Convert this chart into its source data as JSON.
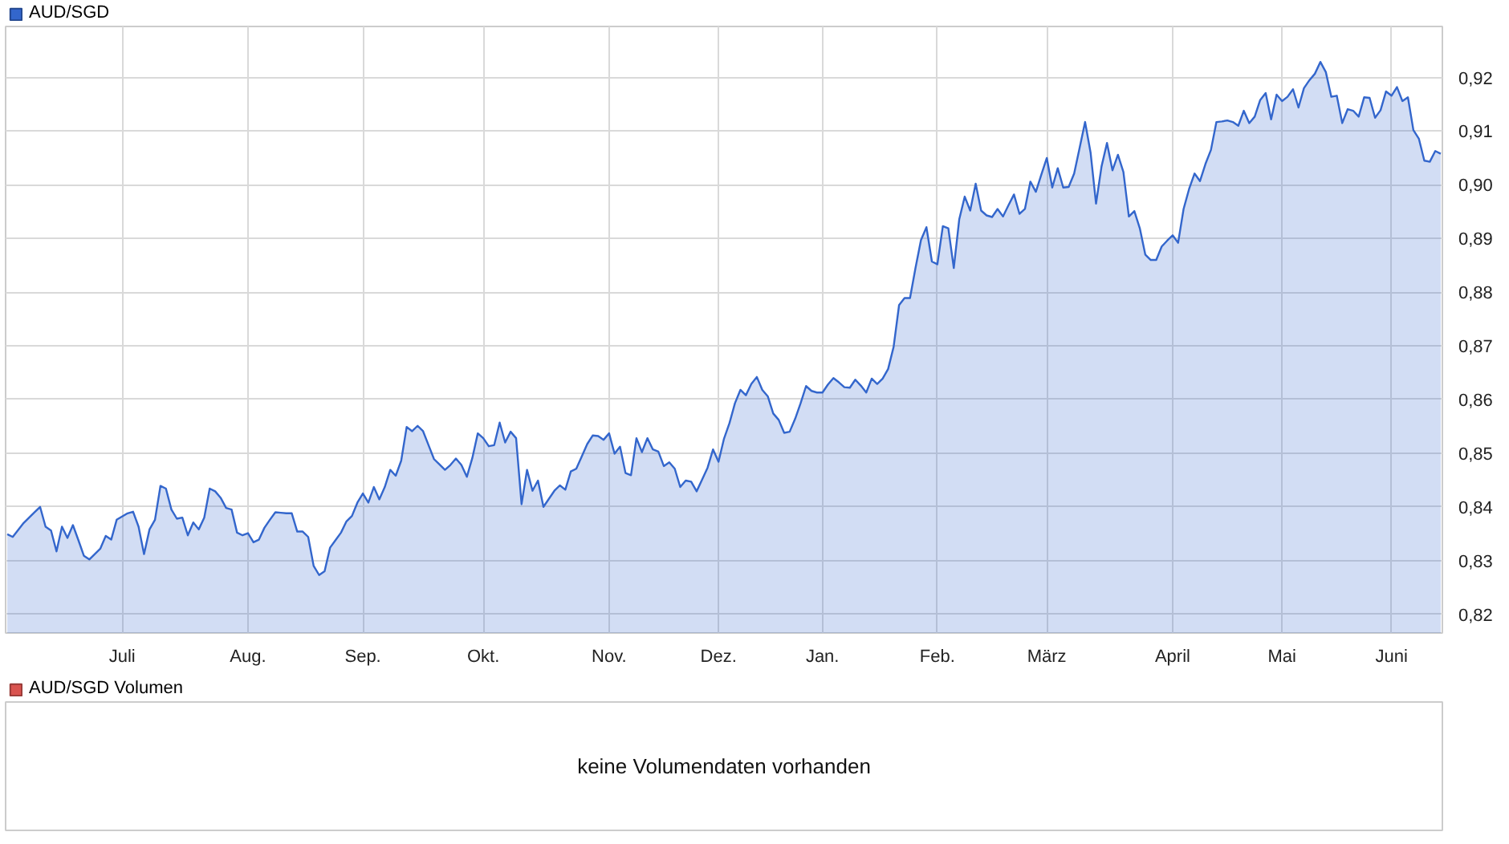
{
  "chart_data": [
    {
      "type": "area",
      "categories": [
        null,
        null,
        null,
        null,
        null,
        null,
        null,
        null,
        null,
        null,
        null,
        null,
        null,
        null,
        null,
        null,
        null,
        null,
        null,
        null,
        null,
        "Juli",
        null,
        null,
        null,
        null,
        null,
        null,
        null,
        null,
        null,
        null,
        null,
        null,
        null,
        null,
        null,
        null,
        null,
        null,
        null,
        null,
        null,
        null,
        "Aug.",
        null,
        null,
        null,
        null,
        null,
        null,
        null,
        null,
        null,
        null,
        null,
        null,
        null,
        null,
        null,
        null,
        null,
        null,
        null,
        null,
        "Sep.",
        null,
        null,
        null,
        null,
        null,
        null,
        null,
        null,
        null,
        null,
        null,
        null,
        null,
        null,
        null,
        null,
        null,
        null,
        null,
        null,
        null,
        "Okt.",
        null,
        null,
        null,
        null,
        null,
        null,
        null,
        null,
        null,
        null,
        null,
        null,
        null,
        null,
        null,
        null,
        null,
        null,
        null,
        null,
        null,
        null,
        "Nov.",
        null,
        null,
        null,
        null,
        null,
        null,
        null,
        null,
        null,
        null,
        null,
        null,
        null,
        null,
        null,
        null,
        null,
        null,
        null,
        "Dez.",
        null,
        null,
        null,
        null,
        null,
        null,
        null,
        null,
        null,
        null,
        null,
        null,
        null,
        null,
        null,
        null,
        null,
        null,
        "Jan.",
        null,
        null,
        null,
        null,
        null,
        null,
        null,
        null,
        null,
        null,
        null,
        null,
        null,
        null,
        null,
        null,
        null,
        null,
        null,
        null,
        "Feb.",
        null,
        null,
        null,
        null,
        null,
        null,
        null,
        null,
        null,
        null,
        null,
        null,
        null,
        null,
        null,
        null,
        null,
        null,
        null,
        "März",
        null,
        null,
        null,
        null,
        null,
        null,
        null,
        null,
        null,
        null,
        null,
        null,
        null,
        null,
        null,
        null,
        null,
        null,
        null,
        null,
        null,
        null,
        "April",
        null,
        null,
        null,
        null,
        null,
        null,
        null,
        null,
        null,
        null,
        null,
        null,
        null,
        null,
        null,
        null,
        null,
        null,
        null,
        "Mai",
        null,
        null,
        null,
        null,
        null,
        null,
        null,
        null,
        null,
        null,
        null,
        null,
        null,
        null,
        null,
        null,
        null,
        null,
        null,
        "Juni",
        null,
        null,
        null,
        null,
        null,
        null,
        null,
        null,
        null
      ],
      "series": [
        {
          "name": "AUD/SGD",
          "color": "#3366cc",
          "values": [
            0.8349,
            0.8344,
            0.8357,
            0.837,
            0.838,
            0.839,
            0.84,
            0.8363,
            0.8356,
            0.8317,
            0.8363,
            0.8342,
            0.8366,
            0.8338,
            0.8309,
            0.8302,
            0.8312,
            0.8322,
            0.8346,
            0.8339,
            0.8376,
            0.8382,
            0.8388,
            0.8391,
            0.8363,
            0.8312,
            0.8358,
            0.8376,
            0.8439,
            0.8434,
            0.8395,
            0.8378,
            0.838,
            0.8347,
            0.8371,
            0.8358,
            0.838,
            0.8434,
            0.8429,
            0.8417,
            0.8398,
            0.8395,
            0.8352,
            0.8347,
            0.8351,
            0.8334,
            0.8339,
            0.8361,
            0.8376,
            0.839,
            0.8389,
            0.8388,
            0.8388,
            0.8354,
            0.8354,
            0.8344,
            0.829,
            0.8273,
            0.828,
            0.8324,
            0.8338,
            0.8352,
            0.8373,
            0.8383,
            0.8408,
            0.8425,
            0.8408,
            0.8437,
            0.8414,
            0.8437,
            0.8469,
            0.8458,
            0.8486,
            0.8549,
            0.8541,
            0.8551,
            0.8541,
            0.8515,
            0.8489,
            0.8479,
            0.8469,
            0.8478,
            0.849,
            0.8478,
            0.8456,
            0.8491,
            0.8537,
            0.8528,
            0.8513,
            0.8515,
            0.8557,
            0.852,
            0.854,
            0.8528,
            0.8405,
            0.8469,
            0.843,
            0.8449,
            0.84,
            0.8415,
            0.843,
            0.844,
            0.8432,
            0.8466,
            0.8471,
            0.8494,
            0.8517,
            0.8533,
            0.8532,
            0.8525,
            0.8537,
            0.8499,
            0.8512,
            0.8463,
            0.8459,
            0.8528,
            0.8502,
            0.8528,
            0.8507,
            0.8503,
            0.8476,
            0.8483,
            0.8471,
            0.8437,
            0.8449,
            0.8447,
            0.8429,
            0.8451,
            0.8473,
            0.8507,
            0.8484,
            0.8527,
            0.8556,
            0.8593,
            0.8618,
            0.8608,
            0.8629,
            0.8642,
            0.8618,
            0.8606,
            0.8574,
            0.8562,
            0.8538,
            0.854,
            0.8564,
            0.8593,
            0.8625,
            0.8616,
            0.8613,
            0.8613,
            0.8628,
            0.864,
            0.8632,
            0.8623,
            0.8622,
            0.8637,
            0.8626,
            0.8613,
            0.8639,
            0.8629,
            0.8639,
            0.8657,
            0.8698,
            0.8776,
            0.8789,
            0.8789,
            0.8845,
            0.8897,
            0.8921,
            0.8857,
            0.8852,
            0.8923,
            0.8919,
            0.8845,
            0.8936,
            0.8978,
            0.8952,
            0.9002,
            0.8952,
            0.8943,
            0.894,
            0.8955,
            0.8941,
            0.8962,
            0.8982,
            0.8946,
            0.8955,
            0.9006,
            0.8987,
            0.9019,
            0.905,
            0.8995,
            0.9031,
            0.8995,
            0.8996,
            0.9021,
            0.9069,
            0.9117,
            0.906,
            0.8965,
            0.9034,
            0.9078,
            0.9027,
            0.9056,
            0.9024,
            0.8941,
            0.8951,
            0.8919,
            0.887,
            0.886,
            0.886,
            0.8885,
            0.8896,
            0.8906,
            0.8892,
            0.8955,
            0.8992,
            0.9021,
            0.9007,
            0.9039,
            0.9065,
            0.9117,
            0.9118,
            0.912,
            0.9117,
            0.911,
            0.9138,
            0.9115,
            0.9127,
            0.9158,
            0.9171,
            0.9122,
            0.9168,
            0.9156,
            0.9164,
            0.9178,
            0.9144,
            0.918,
            0.9195,
            0.9207,
            0.9229,
            0.921,
            0.9164,
            0.9166,
            0.9115,
            0.9141,
            0.9138,
            0.9127,
            0.9163,
            0.9162,
            0.9125,
            0.9139,
            0.9174,
            0.9166,
            0.9182,
            0.9156,
            0.9163,
            0.9102,
            0.9086,
            0.9045,
            0.9043,
            0.9063,
            0.9058
          ]
        }
      ],
      "ylim": [
        0.8165,
        0.9295
      ],
      "yticks": [
        {
          "value": 0.82,
          "label": "0,82"
        },
        {
          "value": 0.83,
          "label": "0,83"
        },
        {
          "value": 0.84,
          "label": "0,84"
        },
        {
          "value": 0.85,
          "label": "0,85"
        },
        {
          "value": 0.86,
          "label": "0,86"
        },
        {
          "value": 0.87,
          "label": "0,87"
        },
        {
          "value": 0.88,
          "label": "0,88"
        },
        {
          "value": 0.89,
          "label": "0,89"
        },
        {
          "value": 0.9,
          "label": "0,90"
        },
        {
          "value": 0.91,
          "label": "0,91"
        },
        {
          "value": 0.92,
          "label": "0,92"
        }
      ],
      "grid": true,
      "legend": "top left"
    },
    {
      "type": "other",
      "series": [
        {
          "name": "AUD/SGD Volumen",
          "color": "#d9534f"
        }
      ],
      "annotations": [
        "keine Volumendaten vorhanden"
      ],
      "legend": "top left"
    }
  ]
}
